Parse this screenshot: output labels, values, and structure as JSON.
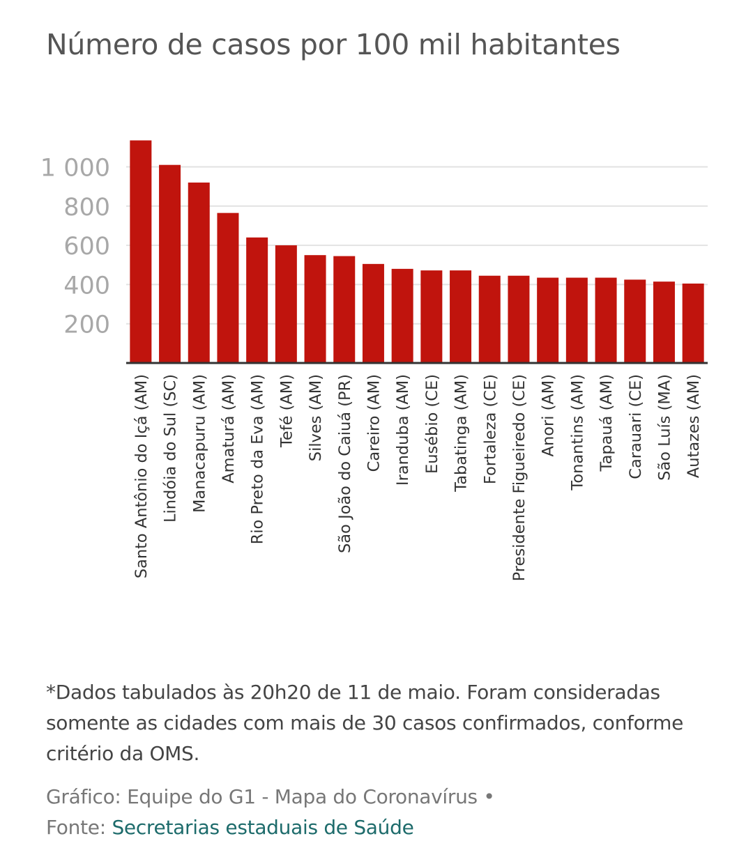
{
  "title": "Número de casos por 100 mil habitantes",
  "chart_data": {
    "type": "bar",
    "categories": [
      "Santo Antônio do Içá (AM)",
      "Lindóia do Sul (SC)",
      "Manacapuru (AM)",
      "Amaturá (AM)",
      "Rio Preto da Eva (AM)",
      "Tefé (AM)",
      "Silves (AM)",
      "São João do Caiuá (PR)",
      "Careiro (AM)",
      "Iranduba (AM)",
      "Eusébio (CE)",
      "Tabatinga (AM)",
      "Fortaleza (CE)",
      "Presidente Figueiredo (CE)",
      "Anori (AM)",
      "Tonantins (AM)",
      "Tapauá (AM)",
      "Carauari (CE)",
      "São Luís (MA)",
      "Autazes (AM)"
    ],
    "values": [
      1135,
      1010,
      920,
      765,
      640,
      600,
      550,
      545,
      505,
      480,
      472,
      472,
      445,
      445,
      435,
      435,
      435,
      425,
      415,
      405
    ],
    "yticks": [
      200,
      400,
      600,
      800,
      1000
    ],
    "ytick_labels": [
      "200",
      "400",
      "600",
      "800",
      "1 000"
    ],
    "ylim": [
      0,
      1180
    ],
    "grid": true,
    "bar_color": "#c0140d",
    "title": "Número de casos por 100 mil habitantes",
    "xlabel": "",
    "ylabel": ""
  },
  "note": "*Dados tabulados às 20h20 de 11 de maio. Foram consideradas somente as cidades com mais de 30 casos confirmados, conforme critério da OMS.",
  "credit": {
    "graphic": "Gráfico: Equipe do G1 - Mapa do Coronavírus •",
    "source_label": "Fonte:",
    "source_link": "Secretarias estaduais de Saúde"
  },
  "colors": {
    "accent_bar": "#c0140d",
    "link": "#1d6b6b"
  }
}
